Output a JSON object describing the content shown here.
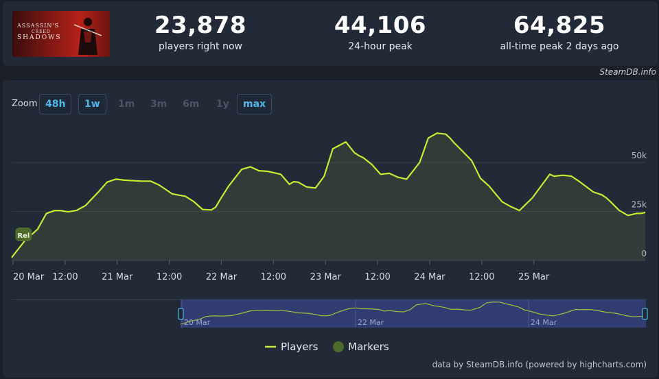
{
  "header": {
    "game_logo_text": "ASSASSIN'S CREED SHADOWS",
    "stats": [
      {
        "value": "23,878",
        "label": "players right now"
      },
      {
        "value": "44,106",
        "label": "24-hour peak"
      },
      {
        "value": "64,825",
        "label": "all-time peak 2 days ago"
      }
    ],
    "credit": "SteamDB.info"
  },
  "zoom": {
    "label": "Zoom",
    "buttons": [
      {
        "label": "48h",
        "active": true
      },
      {
        "label": "1w",
        "active": true
      },
      {
        "label": "1m",
        "active": false
      },
      {
        "label": "3m",
        "active": false
      },
      {
        "label": "6m",
        "active": false
      },
      {
        "label": "1y",
        "active": false
      },
      {
        "label": "max",
        "active": true
      }
    ]
  },
  "legend": {
    "players": "Players",
    "markers": "Markers"
  },
  "footer_credit": "data by SteamDB.info (powered by highcharts.com)",
  "colors": {
    "line": "#c8ea35",
    "marker": "#4d6b2a",
    "accent": "#4fb6e8",
    "navigator_band": "#3a4a8a"
  },
  "chart_data": {
    "type": "line",
    "series": [
      {
        "name": "Players",
        "x": [
          0,
          3,
          6,
          8,
          10,
          11,
          13,
          15,
          17,
          20,
          22,
          24,
          26,
          30,
          32,
          34,
          37,
          40,
          42,
          43,
          44,
          46,
          47,
          48,
          50,
          53,
          55,
          57,
          59,
          62,
          64,
          65,
          66,
          68,
          70,
          72,
          74,
          77,
          79,
          80,
          81,
          83,
          85,
          87,
          89,
          91,
          94,
          96,
          98,
          100,
          101,
          102,
          104,
          106,
          108,
          110,
          113,
          115,
          117,
          120,
          122,
          124,
          125,
          127,
          129,
          131,
          134,
          136,
          137,
          138,
          140,
          142,
          144,
          145,
          146
        ],
        "y": [
          1500,
          10000,
          16000,
          24000,
          25500,
          25500,
          24800,
          25600,
          28000,
          35000,
          40000,
          41500,
          41000,
          40500,
          40500,
          38500,
          34000,
          32800,
          30000,
          28000,
          26000,
          25800,
          27200,
          31000,
          38000,
          46500,
          47800,
          45800,
          45500,
          44000,
          38900,
          40200,
          40000,
          37500,
          37000,
          43000,
          57000,
          60500,
          55000,
          53500,
          52500,
          49000,
          44000,
          44500,
          42500,
          41500,
          50000,
          62500,
          65000,
          64500,
          62500,
          60000,
          55500,
          51000,
          42000,
          38000,
          30000,
          27500,
          25500,
          32000,
          38000,
          44000,
          43000,
          43500,
          43000,
          40000,
          35000,
          33500,
          32000,
          30000,
          25500,
          23000,
          24000,
          24000,
          24500
        ]
      }
    ],
    "x_ticks": [
      "20 Mar",
      "12:00",
      "21 Mar",
      "12:00",
      "22 Mar",
      "12:00",
      "23 Mar",
      "12:00",
      "24 Mar",
      "12:00",
      "25 Mar"
    ],
    "x_tick_hours": [
      0,
      12,
      24,
      36,
      48,
      60,
      72,
      84,
      96,
      108,
      120
    ],
    "y_ticks": [
      "0",
      "25k",
      "50k"
    ],
    "y_tick_values": [
      0,
      25000,
      50000
    ],
    "ylim": [
      0,
      70000
    ],
    "xlim_hours": [
      0,
      146
    ],
    "marker": {
      "label": "Rel",
      "hour": 1
    },
    "navigator": {
      "labels": [
        "20 Mar",
        "22 Mar",
        "24 Mar"
      ]
    }
  }
}
